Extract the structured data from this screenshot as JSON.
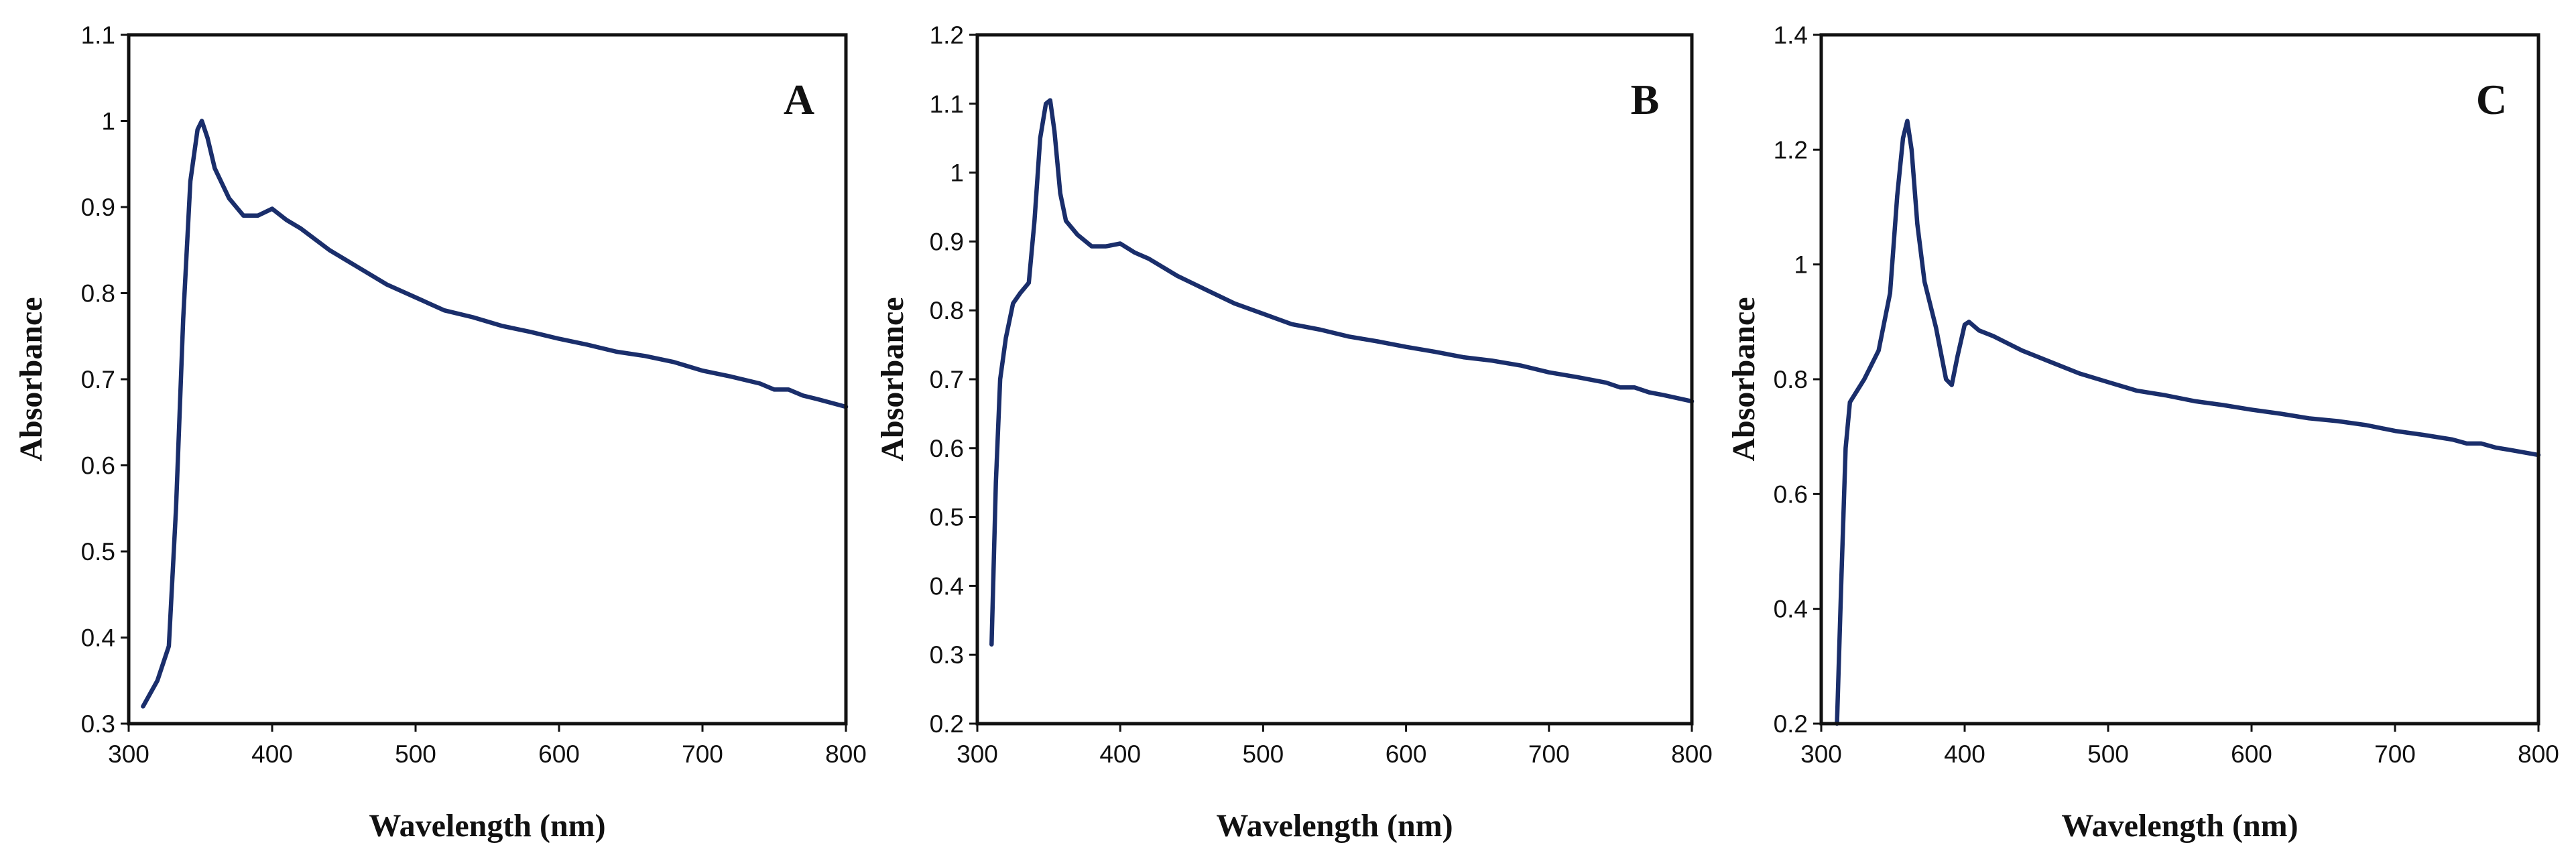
{
  "figure": {
    "line_color": "#1a2e6b",
    "panels": [
      "panel-a",
      "panel-b",
      "panel-c"
    ]
  },
  "chart_data": [
    {
      "type": "line",
      "title": "A",
      "xlabel": "Wavelength (nm)",
      "ylabel": "Absorbance",
      "xlim": [
        300,
        800
      ],
      "ylim": [
        0.3,
        1.1
      ],
      "xticks": [
        300,
        400,
        500,
        600,
        700,
        800
      ],
      "xtick_labels": [
        "300",
        "400",
        "500",
        "600",
        "700",
        "800"
      ],
      "yticks": [
        0.3,
        0.4,
        0.5,
        0.6,
        0.7,
        0.8,
        0.9,
        1.0,
        1.1
      ],
      "ytick_labels": [
        "0.3",
        "0.4",
        "0.5",
        "0.6",
        "0.7",
        "0.8",
        "0.9",
        "1",
        "1.1"
      ],
      "grid": false,
      "series": [
        {
          "name": "A",
          "x": [
            310,
            320,
            328,
            333,
            338,
            343,
            348,
            351,
            355,
            360,
            370,
            380,
            390,
            400,
            410,
            420,
            440,
            460,
            480,
            500,
            520,
            540,
            560,
            580,
            600,
            620,
            640,
            660,
            680,
            700,
            720,
            740,
            750,
            760,
            770,
            780,
            800
          ],
          "y": [
            0.32,
            0.35,
            0.39,
            0.55,
            0.77,
            0.93,
            0.99,
            1.0,
            0.98,
            0.945,
            0.91,
            0.89,
            0.89,
            0.898,
            0.885,
            0.875,
            0.85,
            0.83,
            0.81,
            0.795,
            0.78,
            0.772,
            0.762,
            0.755,
            0.747,
            0.74,
            0.732,
            0.727,
            0.72,
            0.71,
            0.703,
            0.695,
            0.688,
            0.688,
            0.681,
            0.677,
            0.668
          ]
        }
      ]
    },
    {
      "type": "line",
      "title": "B",
      "xlabel": "Wavelength (nm)",
      "ylabel": "Absorbance",
      "xlim": [
        300,
        800
      ],
      "ylim": [
        0.2,
        1.2
      ],
      "xticks": [
        300,
        400,
        500,
        600,
        700,
        800
      ],
      "xtick_labels": [
        "300",
        "400",
        "500",
        "600",
        "700",
        "800"
      ],
      "yticks": [
        0.2,
        0.3,
        0.4,
        0.5,
        0.6,
        0.7,
        0.8,
        0.9,
        1.0,
        1.1,
        1.2
      ],
      "ytick_labels": [
        "0.2",
        "0.3",
        "0.4",
        "0.5",
        "0.6",
        "0.7",
        "0.8",
        "0.9",
        "1",
        "1.1",
        "1.2"
      ],
      "grid": false,
      "series": [
        {
          "name": "B",
          "x": [
            310,
            313,
            316,
            320,
            325,
            330,
            336,
            340,
            344,
            348,
            351,
            354,
            358,
            362,
            370,
            380,
            390,
            400,
            410,
            420,
            440,
            460,
            480,
            500,
            520,
            540,
            560,
            580,
            600,
            620,
            640,
            660,
            680,
            700,
            720,
            740,
            750,
            760,
            770,
            780,
            800
          ],
          "y": [
            0.315,
            0.55,
            0.7,
            0.76,
            0.81,
            0.825,
            0.84,
            0.93,
            1.05,
            1.1,
            1.105,
            1.06,
            0.97,
            0.93,
            0.91,
            0.893,
            0.893,
            0.897,
            0.884,
            0.875,
            0.85,
            0.83,
            0.81,
            0.795,
            0.78,
            0.772,
            0.762,
            0.755,
            0.747,
            0.74,
            0.732,
            0.727,
            0.72,
            0.71,
            0.703,
            0.695,
            0.688,
            0.688,
            0.681,
            0.677,
            0.668
          ]
        }
      ]
    },
    {
      "type": "line",
      "title": "C",
      "xlabel": "Wavelength (nm)",
      "ylabel": "Absorbance",
      "xlim": [
        300,
        800
      ],
      "ylim": [
        0.2,
        1.4
      ],
      "xticks": [
        300,
        400,
        500,
        600,
        700,
        800
      ],
      "xtick_labels": [
        "300",
        "400",
        "500",
        "600",
        "700",
        "800"
      ],
      "yticks": [
        0.2,
        0.4,
        0.6,
        0.8,
        1.0,
        1.2,
        1.4
      ],
      "ytick_labels": [
        "0.2",
        "0.4",
        "0.6",
        "0.8",
        "1",
        "1.2",
        "1.4"
      ],
      "grid": false,
      "series": [
        {
          "name": "C",
          "x": [
            311,
            314,
            317,
            320,
            325,
            330,
            340,
            348,
            353,
            357,
            360,
            363,
            367,
            372,
            380,
            387,
            391,
            395,
            400,
            403,
            410,
            420,
            440,
            460,
            480,
            500,
            520,
            540,
            560,
            580,
            600,
            620,
            640,
            660,
            680,
            700,
            720,
            740,
            750,
            760,
            770,
            780,
            800
          ],
          "y": [
            0.2,
            0.45,
            0.68,
            0.76,
            0.78,
            0.8,
            0.85,
            0.95,
            1.12,
            1.22,
            1.25,
            1.2,
            1.07,
            0.97,
            0.89,
            0.8,
            0.79,
            0.84,
            0.895,
            0.9,
            0.885,
            0.875,
            0.85,
            0.83,
            0.81,
            0.795,
            0.78,
            0.772,
            0.762,
            0.755,
            0.747,
            0.74,
            0.732,
            0.727,
            0.72,
            0.71,
            0.703,
            0.695,
            0.688,
            0.688,
            0.681,
            0.677,
            0.668
          ]
        }
      ]
    }
  ]
}
